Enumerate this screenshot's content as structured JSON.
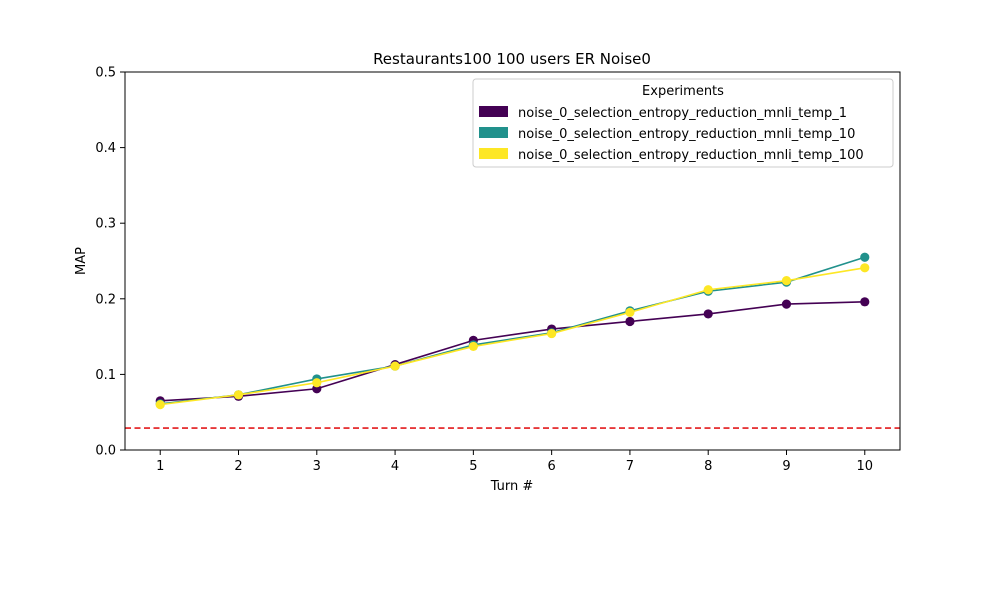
{
  "chart_data": {
    "type": "line",
    "title": "Restaurants100 100 users ER Noise0",
    "xlabel": "Turn #",
    "ylabel": "MAP",
    "x": [
      1,
      2,
      3,
      4,
      5,
      6,
      7,
      8,
      9,
      10
    ],
    "xlim": [
      0.55,
      10.45
    ],
    "ylim": [
      0.0,
      0.5
    ],
    "xticks": [
      "1",
      "2",
      "3",
      "4",
      "5",
      "6",
      "7",
      "8",
      "9",
      "10"
    ],
    "yticks": [
      "0.0",
      "0.1",
      "0.2",
      "0.3",
      "0.4",
      "0.5"
    ],
    "grid": false,
    "legend": {
      "title": "Experiments",
      "placement": "upper right"
    },
    "series": [
      {
        "name": "noise_0_selection_entropy_reduction_mnli_temp_1",
        "color": "#440154",
        "values": [
          0.065,
          0.071,
          0.081,
          0.113,
          0.145,
          0.16,
          0.17,
          0.18,
          0.193,
          0.196
        ]
      },
      {
        "name": "noise_0_selection_entropy_reduction_mnli_temp_10",
        "color": "#21918c",
        "values": [
          0.061,
          0.073,
          0.094,
          0.111,
          0.139,
          0.155,
          0.184,
          0.21,
          0.222,
          0.255
        ]
      },
      {
        "name": "noise_0_selection_entropy_reduction_mnli_temp_100",
        "color": "#fde725",
        "values": [
          0.06,
          0.073,
          0.089,
          0.111,
          0.137,
          0.154,
          0.182,
          0.212,
          0.224,
          0.241
        ]
      }
    ],
    "reference_line": {
      "y": 0.029,
      "color": "#e31a1c",
      "style": "dashed"
    }
  }
}
